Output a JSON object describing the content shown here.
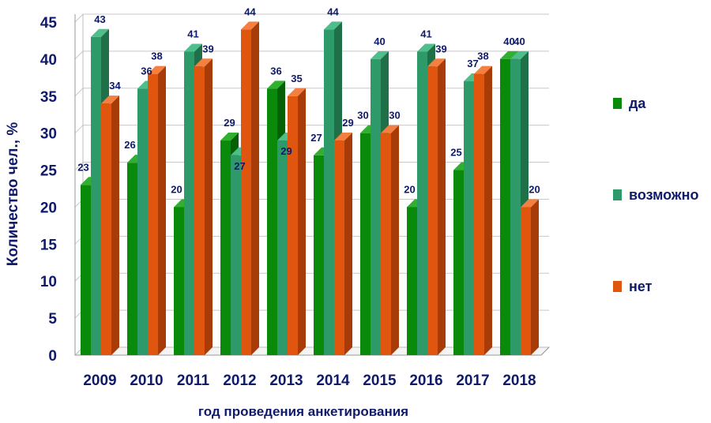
{
  "chart_data": {
    "type": "bar",
    "categories": [
      "2009",
      "2010",
      "2011",
      "2012",
      "2013",
      "2014",
      "2015",
      "2016",
      "2017",
      "2018"
    ],
    "series": [
      {
        "name": "да",
        "values": [
          23,
          26,
          20,
          29,
          36,
          27,
          30,
          20,
          25,
          40
        ]
      },
      {
        "name": "возможно",
        "values": [
          43,
          36,
          41,
          27,
          29,
          44,
          40,
          41,
          37,
          40
        ]
      },
      {
        "name": "нет",
        "values": [
          34,
          38,
          39,
          44,
          35,
          29,
          30,
          39,
          38,
          20
        ]
      }
    ],
    "xlabel": "год проведения анкетирования",
    "ylabel": "Количество чел., %",
    "ylim": [
      0,
      45
    ],
    "yticks": [
      0,
      5,
      10,
      15,
      20,
      25,
      30,
      35,
      40,
      45
    ],
    "grid": true,
    "legend_position": "right",
    "colors": {
      "да": {
        "front": "#0a8a0a",
        "side": "#066006",
        "top": "#2fb02f"
      },
      "возможно": {
        "front": "#2e9a6a",
        "side": "#1f7049",
        "top": "#4ebf8a"
      },
      "нет": {
        "front": "#e0560f",
        "side": "#a83c08",
        "top": "#f47f40"
      }
    }
  }
}
